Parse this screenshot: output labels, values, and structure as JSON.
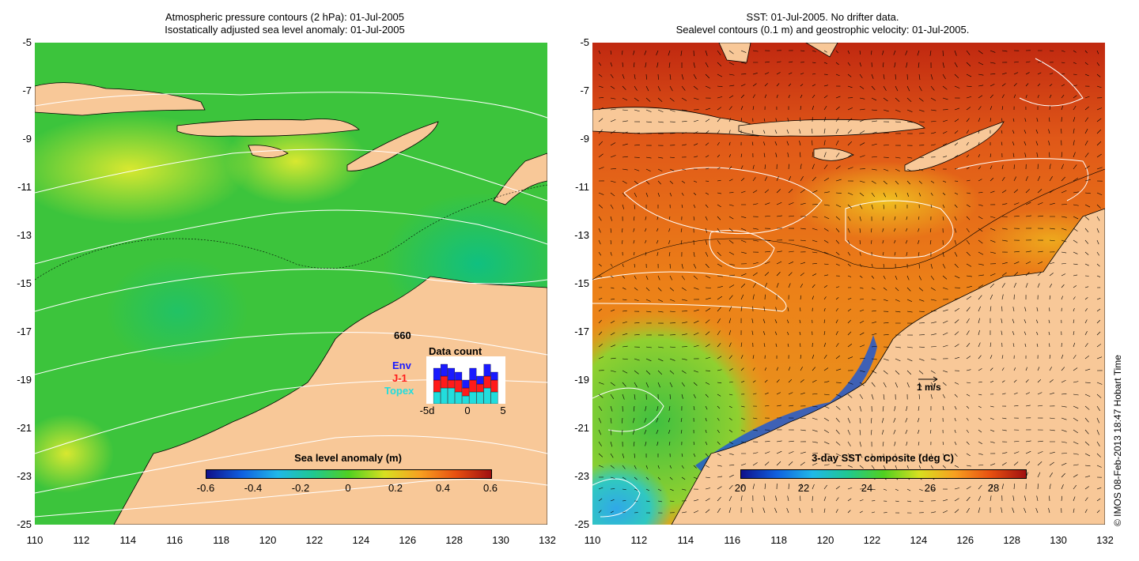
{
  "left_panel": {
    "title_line1": "Atmospheric pressure contours (2 hPa): 01-Jul-2005",
    "title_line2": "Isostatically adjusted sea level anomaly: 01-Jul-2005",
    "colorbar": {
      "title": "Sea level anomaly (m)",
      "ticks": [
        "-0.6",
        "-0.4",
        "-0.2",
        "0",
        "0.2",
        "0.4",
        "0.6"
      ]
    },
    "data_count": {
      "title": "Data count",
      "total": "660",
      "env_label": "Env",
      "j1_label": "J-1",
      "topex_label": "Topex",
      "x_ticks": [
        "-5d",
        "0",
        "5"
      ],
      "colors": {
        "env": "#1a1aff",
        "j1": "#ff1a1a",
        "topex": "#22dddd"
      },
      "days": [
        -4,
        -3,
        -2,
        -1,
        0,
        1,
        2,
        3,
        4
      ],
      "topex": [
        3,
        4,
        4,
        3,
        2,
        3,
        3,
        4,
        3
      ],
      "j1": [
        3,
        3,
        2,
        3,
        2,
        3,
        2,
        3,
        3
      ],
      "env": [
        3,
        3,
        3,
        2,
        2,
        3,
        2,
        3,
        2
      ]
    }
  },
  "right_panel": {
    "title_line1": "SST: 01-Jul-2005. No drifter data.",
    "title_line2": "Sealevel contours (0.1 m) and geostrophic velocity: 01-Jul-2005.",
    "colorbar": {
      "title": "3-day SST composite (deg C)",
      "ticks": [
        "20",
        "22",
        "24",
        "26",
        "28"
      ]
    },
    "scale_label": "1 m/s"
  },
  "axes": {
    "y_ticks": [
      "-5",
      "-7",
      "-9",
      "-11",
      "-13",
      "-15",
      "-17",
      "-19",
      "-21",
      "-23",
      "-25"
    ],
    "x_ticks": [
      "110",
      "112",
      "114",
      "116",
      "118",
      "120",
      "122",
      "124",
      "126",
      "128",
      "130",
      "132"
    ]
  },
  "colors": {
    "land": "#f8c898",
    "ocean_left": "#30c030",
    "ocean_right": "#ee7a18"
  },
  "credit": "© IMOS 08-Feb-2013 18:47 Hobart Time"
}
